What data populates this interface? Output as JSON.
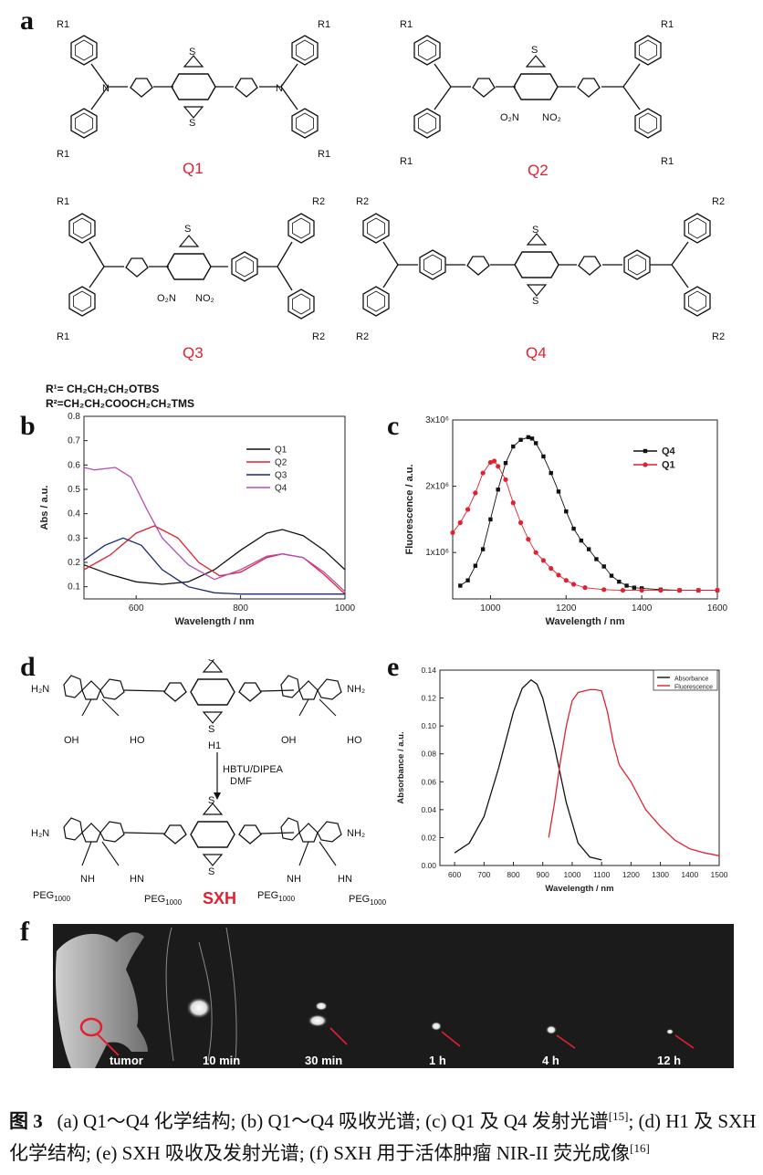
{
  "panels": {
    "a": "a",
    "b": "b",
    "c": "c",
    "d": "d",
    "e": "e",
    "f": "f"
  },
  "structures": {
    "q1": {
      "label": "Q1",
      "r1": "R1",
      "r2": "R1",
      "r3": "R1",
      "r4": "R1"
    },
    "q2": {
      "label": "Q2",
      "r1": "R1",
      "r2": "R1",
      "r3": "R1",
      "r4": "R1",
      "no2a": "O₂N",
      "no2b": "NO₂"
    },
    "q3": {
      "label": "Q3",
      "r1": "R1",
      "r2": "R1",
      "r3": "R2",
      "r4": "R2",
      "no2a": "O₂N",
      "no2b": "NO₂"
    },
    "q4": {
      "label": "Q4",
      "r1": "R2",
      "r2": "R2",
      "r3": "R2",
      "r4": "R2"
    },
    "ns": "N",
    "s": "S",
    "r_defs": [
      "R¹= CH₂CH₂CH₂OTBS",
      "R²=CH₂CH₂COOCH₂CH₂TMS"
    ]
  },
  "chart_data": [
    {
      "id": "b",
      "type": "line",
      "title": "",
      "xlabel": "Wavelength / nm",
      "ylabel": "Abs / a.u.",
      "xlim": [
        500,
        1000
      ],
      "ylim": [
        0.05,
        0.8
      ],
      "xticks": [
        600,
        800,
        1000
      ],
      "yticks": [
        0.1,
        0.2,
        0.3,
        0.4,
        0.5,
        0.6,
        0.7,
        0.8
      ],
      "ytick_labels": [
        "0.1",
        "0.2",
        "0.3",
        "0.4",
        "0.5",
        "0.6",
        "0.7",
        "0.8"
      ],
      "legend_position": "top-right",
      "series": [
        {
          "name": "Q1",
          "color": "#111111",
          "x": [
            500,
            550,
            600,
            650,
            700,
            750,
            800,
            850,
            880,
            920,
            960,
            1000
          ],
          "y": [
            0.19,
            0.15,
            0.12,
            0.11,
            0.12,
            0.17,
            0.25,
            0.32,
            0.335,
            0.31,
            0.25,
            0.17
          ]
        },
        {
          "name": "Q2",
          "color": "#e2202f",
          "x": [
            500,
            550,
            600,
            635,
            680,
            720,
            760,
            800,
            850,
            880,
            920,
            960,
            1000
          ],
          "y": [
            0.17,
            0.23,
            0.32,
            0.35,
            0.3,
            0.2,
            0.145,
            0.16,
            0.22,
            0.235,
            0.22,
            0.15,
            0.07
          ]
        },
        {
          "name": "Q3",
          "color": "#1a2a6e",
          "x": [
            500,
            540,
            575,
            610,
            650,
            700,
            750,
            800,
            900,
            1000
          ],
          "y": [
            0.21,
            0.27,
            0.3,
            0.27,
            0.17,
            0.1,
            0.075,
            0.07,
            0.07,
            0.07
          ]
        },
        {
          "name": "Q4",
          "color": "#b24fb4",
          "x": [
            500,
            520,
            560,
            590,
            620,
            650,
            700,
            750,
            800,
            850,
            880,
            920,
            960,
            1000
          ],
          "y": [
            0.59,
            0.58,
            0.59,
            0.55,
            0.42,
            0.3,
            0.19,
            0.13,
            0.17,
            0.225,
            0.235,
            0.22,
            0.16,
            0.08
          ]
        }
      ]
    },
    {
      "id": "c",
      "type": "line",
      "title": "",
      "xlabel": "Wavelength / nm",
      "ylabel": "Fluorescence / a.u.",
      "xlim": [
        900,
        1600
      ],
      "ylim": [
        300000,
        3000000
      ],
      "xticks": [
        1000,
        1200,
        1400,
        1600
      ],
      "yticks": [
        1000000,
        2000000,
        3000000
      ],
      "ytick_labels": [
        "1x10⁶",
        "2x10⁶",
        "3x10⁶"
      ],
      "legend_position": "top-right",
      "series": [
        {
          "name": "Q4",
          "color": "#111111",
          "x": [
            920,
            940,
            960,
            980,
            1000,
            1020,
            1040,
            1060,
            1080,
            1100,
            1110,
            1120,
            1140,
            1160,
            1180,
            1200,
            1220,
            1240,
            1260,
            1280,
            1300,
            1320,
            1340,
            1360,
            1380,
            1400,
            1450,
            1500,
            1550,
            1600
          ],
          "y": [
            500000,
            580000,
            800000,
            1050000,
            1500000,
            1950000,
            2350000,
            2600000,
            2700000,
            2740000,
            2720000,
            2650000,
            2450000,
            2200000,
            1920000,
            1620000,
            1360000,
            1180000,
            1050000,
            900000,
            790000,
            650000,
            560000,
            500000,
            470000,
            460000,
            440000,
            430000,
            430000,
            430000
          ]
        },
        {
          "name": "Q1",
          "color": "#e2202f",
          "x": [
            900,
            920,
            940,
            960,
            980,
            1000,
            1010,
            1020,
            1040,
            1060,
            1080,
            1100,
            1120,
            1140,
            1160,
            1180,
            1200,
            1220,
            1250,
            1300,
            1350,
            1400,
            1450,
            1500,
            1550,
            1600
          ],
          "y": [
            1300000,
            1450000,
            1650000,
            1900000,
            2200000,
            2360000,
            2380000,
            2300000,
            2100000,
            1750000,
            1450000,
            1200000,
            1000000,
            880000,
            760000,
            660000,
            580000,
            520000,
            470000,
            440000,
            430000,
            430000,
            430000,
            430000,
            430000,
            430000
          ]
        }
      ]
    },
    {
      "id": "e",
      "type": "line",
      "title": "",
      "xlabel": "Wavelength / nm",
      "ylabel": "Absorbance / a.u.",
      "xlim": [
        550,
        1500
      ],
      "ylim": [
        0,
        0.14
      ],
      "xticks": [
        600,
        700,
        800,
        900,
        1000,
        1100,
        1200,
        1300,
        1400,
        1500
      ],
      "yticks": [
        0,
        0.02,
        0.04,
        0.06,
        0.08,
        0.1,
        0.12,
        0.14
      ],
      "ytick_labels": [
        "0.00",
        "0.02",
        "0.04",
        "0.06",
        "0.08",
        "0.10",
        "0.12",
        "0.14"
      ],
      "legend_position": "top-right",
      "series": [
        {
          "name": "Absorbance",
          "color": "#111111",
          "x": [
            600,
            650,
            700,
            750,
            800,
            830,
            860,
            880,
            900,
            940,
            980,
            1020,
            1060,
            1100
          ],
          "y": [
            0.009,
            0.016,
            0.035,
            0.07,
            0.11,
            0.127,
            0.133,
            0.13,
            0.12,
            0.085,
            0.045,
            0.016,
            0.006,
            0.004
          ]
        },
        {
          "name": "Fluorescence",
          "color": "#e2202f",
          "x": [
            920,
            940,
            960,
            980,
            1000,
            1020,
            1040,
            1060,
            1080,
            1100,
            1120,
            1140,
            1160,
            1180,
            1200,
            1220,
            1250,
            1300,
            1350,
            1400,
            1450,
            1500
          ],
          "y": [
            0.02,
            0.045,
            0.075,
            0.1,
            0.118,
            0.124,
            0.125,
            0.126,
            0.126,
            0.125,
            0.11,
            0.088,
            0.072,
            0.066,
            0.06,
            0.052,
            0.04,
            0.028,
            0.018,
            0.012,
            0.009,
            0.007
          ]
        }
      ]
    }
  ],
  "sxh": {
    "h1_label": "H1",
    "sxh_label": "SXH",
    "nh2": "NH₂",
    "h2n": "H₂N",
    "oh": "OH",
    "ho": "HO",
    "o": "O",
    "nh": "NH",
    "hn": "HN",
    "peg": "PEG",
    "peg_sub": "1000",
    "reagents_1": "HBTU/DIPEA",
    "reagents_2": "DMF"
  },
  "imaging": {
    "labels": [
      "tumor",
      "10 min",
      "30 min",
      "1 h",
      "4 h",
      "12 h"
    ]
  },
  "caption": {
    "figure_label": "图 3",
    "text": "(a) Q1～Q4 化学结构; (b) Q1～Q4 吸收光谱; (c) Q1 及 Q4 发射光谱",
    "ref1": "[15]",
    "text2": "; (d) H1 及 SXH 化学结构; (e) SXH 吸收及发射光谱; (f) SXH 用于活体肿瘤 NIR-II 荧光成像",
    "ref2": "[16]"
  },
  "colors": {
    "accent_red": "#e2202f",
    "panel_black": "#1b1b1b"
  }
}
